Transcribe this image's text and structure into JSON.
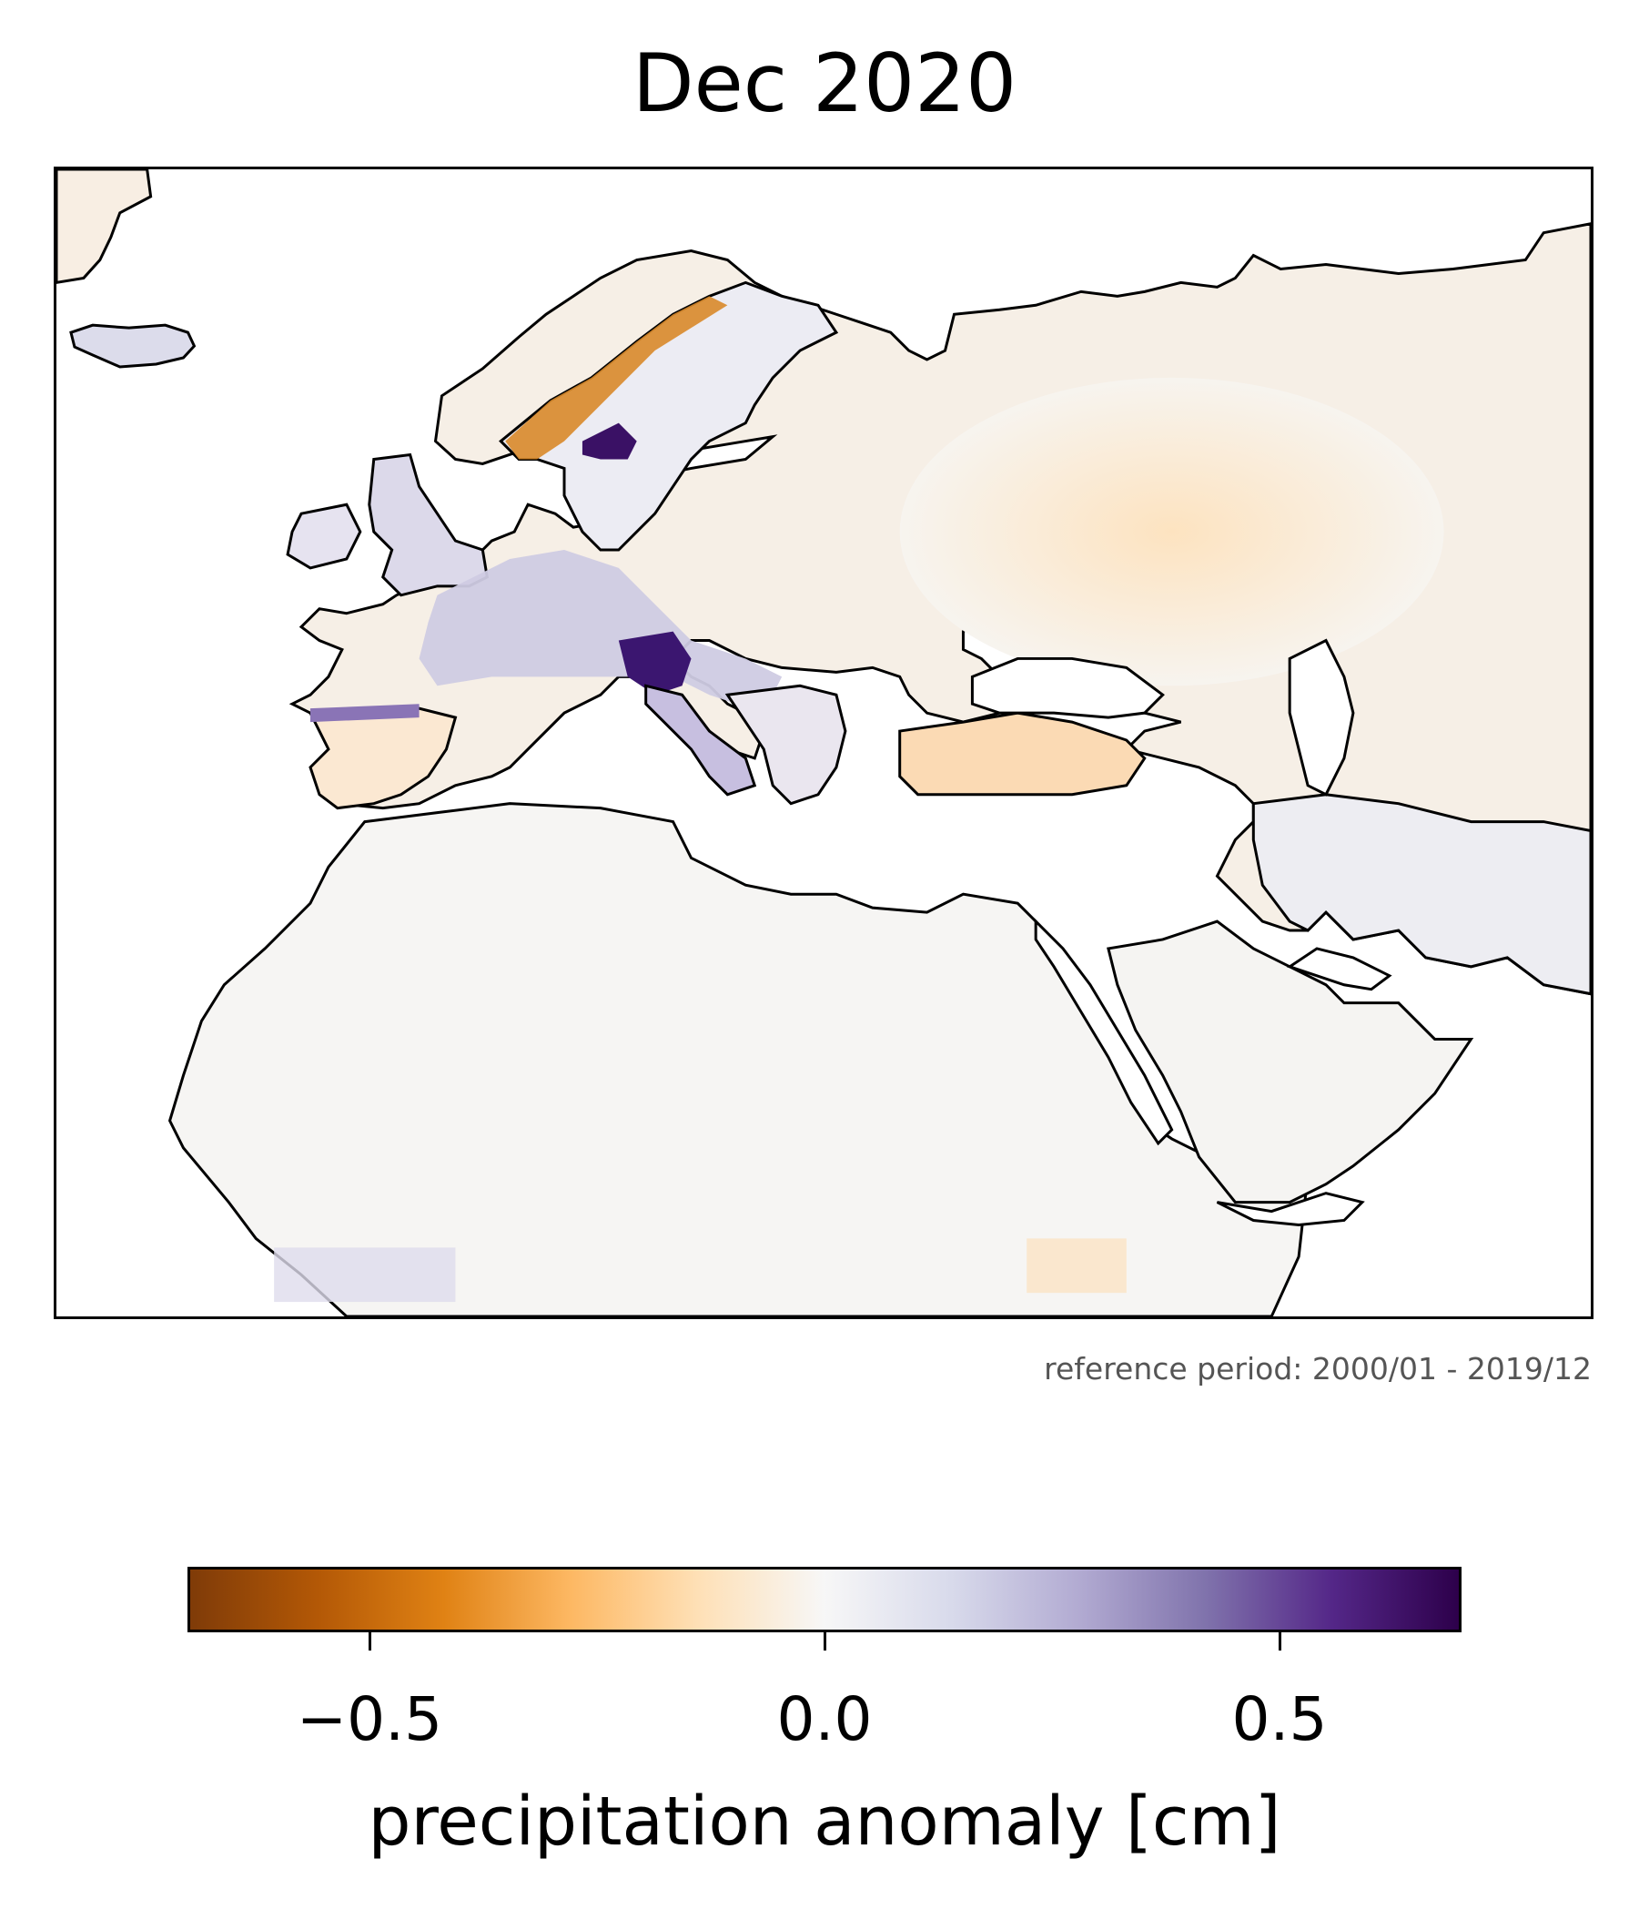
{
  "map": {
    "title": "Dec 2020",
    "reference_note": "reference period: 2000/01 - 2019/12",
    "region": "Europe, North Africa and Middle East",
    "colorscale": {
      "name": "PuOr",
      "min": -0.7,
      "max": 0.7,
      "stops": [
        "#7f3b08",
        "#b35806",
        "#e08214",
        "#fdb863",
        "#fee0b6",
        "#f7f7f7",
        "#d8daeb",
        "#b2abd2",
        "#8073ac",
        "#542788",
        "#2d004b"
      ],
      "ticks": [
        {
          "value": -0.5,
          "label": "−0.5"
        },
        {
          "value": 0.0,
          "label": "0.0"
        },
        {
          "value": 0.5,
          "label": "0.5"
        }
      ],
      "label": "precipitation anomaly [cm]"
    },
    "anomaly_regions": [
      {
        "area": "Sahara",
        "anomaly": 0.0
      },
      {
        "area": "Russia interior",
        "anomaly": -0.12
      },
      {
        "area": "Kazakhstan / Central Asia",
        "anomaly": -0.08
      },
      {
        "area": "Western Europe",
        "anomaly": 0.18
      },
      {
        "area": "Alps / Northern Italy",
        "anomaly": 0.55
      },
      {
        "area": "Norway west coast",
        "anomaly": -0.45
      },
      {
        "area": "Southern Norway",
        "anomaly": 0.45
      },
      {
        "area": "Iceland",
        "anomaly": 0.25
      },
      {
        "area": "Turkey",
        "anomaly": -0.2
      },
      {
        "area": "Iran",
        "anomaly": 0.05
      },
      {
        "area": "Arabian Peninsula",
        "anomaly": 0.0
      },
      {
        "area": "West Africa Sahel",
        "anomaly": 0.1
      }
    ]
  }
}
